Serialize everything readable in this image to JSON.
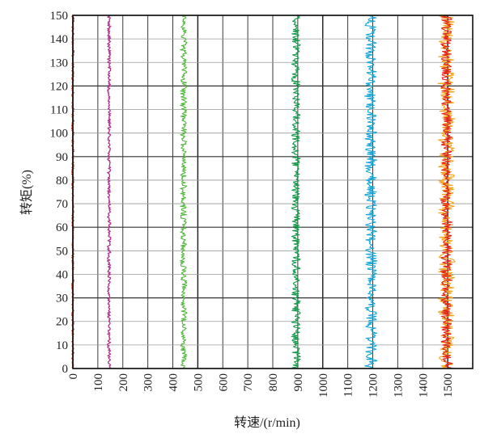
{
  "chart_data": {
    "type": "line",
    "xlabel": "转速/(r/min)",
    "ylabel": "转矩(%)",
    "xlim": [
      0,
      1600
    ],
    "ylim": [
      0,
      150
    ],
    "x_ticks": [
      "0",
      "100",
      "200",
      "300",
      "400",
      "500",
      "600",
      "700",
      "800",
      "900",
      "1000",
      "1100",
      "1200",
      "1300",
      "1400",
      "1500"
    ],
    "y_ticks": [
      "0",
      "10",
      "20",
      "30",
      "40",
      "50",
      "60",
      "70",
      "80",
      "90",
      "100",
      "110",
      "120",
      "130",
      "140",
      "150"
    ],
    "grid": true,
    "legend": "none",
    "colors": {
      "s0": "#c0392b",
      "s150": "#b0338e",
      "s450": "#4fb83a",
      "s900": "#119a48",
      "s1200": "#17a6d6",
      "s1500_a": "#f1a21a",
      "s1500_b": "#e2231a"
    },
    "series": [
      {
        "color_key": "s0",
        "speed_center": 0,
        "speed_spread": 4,
        "torque_range": [
          0,
          150
        ]
      },
      {
        "color_key": "s150",
        "speed_center": 145,
        "speed_spread": 6,
        "torque_range": [
          0,
          150
        ]
      },
      {
        "color_key": "s450",
        "speed_center": 443,
        "speed_spread": 12,
        "torque_range": [
          0,
          150
        ]
      },
      {
        "color_key": "s900",
        "speed_center": 893,
        "speed_spread": 16,
        "torque_range": [
          0,
          150
        ]
      },
      {
        "color_key": "s1200",
        "speed_center": 1193,
        "speed_spread": 22,
        "torque_range": [
          0,
          150
        ]
      },
      {
        "color_key": "s1500_a",
        "speed_center": 1495,
        "speed_spread": 30,
        "torque_range": [
          0,
          150
        ]
      },
      {
        "color_key": "s1500_b",
        "speed_center": 1495,
        "speed_spread": 20,
        "torque_range": [
          0,
          150
        ]
      }
    ]
  }
}
